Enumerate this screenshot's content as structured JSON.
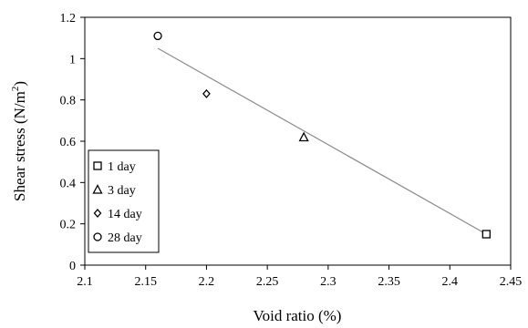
{
  "chart_data": {
    "type": "scatter",
    "title": "",
    "xlabel": "Void ratio (%)",
    "ylabel": "Shear stress (N/m",
    "ylabel_sup": "2",
    "ylabel_end": ")",
    "xlim": [
      2.1,
      2.45
    ],
    "ylim": [
      0,
      1.2
    ],
    "x_ticks": [
      2.1,
      2.15,
      2.2,
      2.25,
      2.3,
      2.35,
      2.4,
      2.45
    ],
    "x_tick_labels": [
      "2.1",
      "2.15",
      "2.2",
      "2.25",
      "2.3",
      "2.35",
      "2.4",
      "2.45"
    ],
    "y_ticks": [
      0,
      0.2,
      0.4,
      0.6,
      0.8,
      1,
      1.2
    ],
    "y_tick_labels": [
      "0",
      "0.2",
      "0.4",
      "0.6",
      "0.8",
      "1",
      "1.2"
    ],
    "grid": false,
    "legend_position": "left",
    "series": [
      {
        "name": "1 day",
        "marker": "square",
        "points": [
          [
            2.43,
            0.15
          ]
        ]
      },
      {
        "name": "3 day",
        "marker": "triangle",
        "points": [
          [
            2.28,
            0.62
          ]
        ]
      },
      {
        "name": "14 day",
        "marker": "diamond",
        "points": [
          [
            2.2,
            0.83
          ]
        ]
      },
      {
        "name": "28 day",
        "marker": "circle",
        "points": [
          [
            2.16,
            1.11
          ]
        ]
      }
    ],
    "trendline": {
      "type": "linear",
      "points": [
        [
          2.16,
          1.05
        ],
        [
          2.43,
          0.15
        ]
      ],
      "color": "#8c8c8c"
    },
    "colors": {
      "axis": "#000000",
      "marker": "#000000",
      "background": "#ffffff"
    }
  }
}
